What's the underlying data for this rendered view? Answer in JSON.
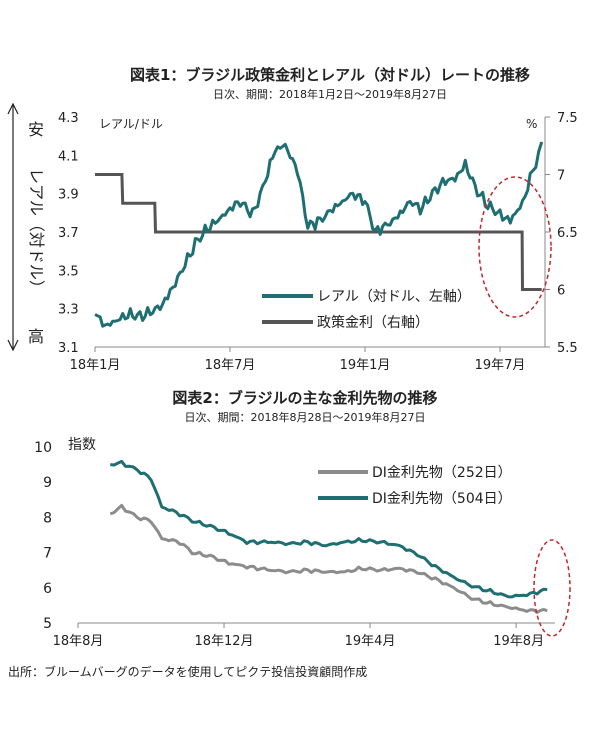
{
  "chart_data": [
    {
      "type": "line",
      "title": "図表1：ブラジル政策金利とレアル（対ドル）レートの推移",
      "subtitle": "日次、期間：2018年1月2日～2019年8月27日",
      "y_left_label_top": "安",
      "y_left_label_mid": "レアル（対ドル）",
      "y_left_label_bottom": "高",
      "y_left_unit": "レアル/ドル",
      "y_right_unit": "%",
      "x_tick_labels": [
        "18年1月",
        "18年7月",
        "19年1月",
        "19年7月"
      ],
      "x_ticks": [
        "2018-01",
        "2018-07",
        "2019-01",
        "2019-07"
      ],
      "y_left_ticks": [
        "4.3",
        "4.1",
        "3.9",
        "3.7",
        "3.5",
        "3.3",
        "3.1"
      ],
      "y_right_ticks": [
        "7.5",
        "7",
        "6.5",
        "6",
        "5.5"
      ],
      "y_left_inverted": true,
      "y_left_range": [
        3.1,
        4.3
      ],
      "y_right_range": [
        5.5,
        7.5
      ],
      "x_range": [
        "2018-01",
        "2019-09"
      ],
      "legend_position": "bottom-right",
      "colors": {
        "brl": "#1f6f72",
        "policy_rate": "#555555",
        "highlight": "#c0272d"
      },
      "series": [
        {
          "name": "レアル（対ドル、左軸）",
          "axis": "left",
          "points": [
            [
              "2018-01",
              3.27
            ],
            [
              "2018-01-15",
              3.21
            ],
            [
              "2018-02",
              3.24
            ],
            [
              "2018-02-15",
              3.27
            ],
            [
              "2018-03",
              3.26
            ],
            [
              "2018-03-15",
              3.28
            ],
            [
              "2018-04",
              3.32
            ],
            [
              "2018-04-15",
              3.41
            ],
            [
              "2018-05",
              3.53
            ],
            [
              "2018-05-15",
              3.64
            ],
            [
              "2018-06",
              3.72
            ],
            [
              "2018-06-15",
              3.76
            ],
            [
              "2018-07",
              3.82
            ],
            [
              "2018-07-15",
              3.86
            ],
            [
              "2018-08",
              3.79
            ],
            [
              "2018-08-15",
              3.93
            ],
            [
              "2018-09",
              4.13
            ],
            [
              "2018-09-15",
              4.15
            ],
            [
              "2018-10",
              4.02
            ],
            [
              "2018-10-15",
              3.73
            ],
            [
              "2018-11",
              3.76
            ],
            [
              "2018-11-15",
              3.81
            ],
            [
              "2018-12",
              3.86
            ],
            [
              "2018-12-15",
              3.9
            ],
            [
              "2019-01",
              3.86
            ],
            [
              "2019-01-15",
              3.7
            ],
            [
              "2019-02",
              3.74
            ],
            [
              "2019-02-15",
              3.78
            ],
            [
              "2019-03",
              3.86
            ],
            [
              "2019-03-15",
              3.82
            ],
            [
              "2019-04",
              3.9
            ],
            [
              "2019-04-15",
              3.96
            ],
            [
              "2019-05",
              3.98
            ],
            [
              "2019-05-15",
              4.05
            ],
            [
              "2019-06",
              3.91
            ],
            [
              "2019-06-15",
              3.84
            ],
            [
              "2019-07",
              3.79
            ],
            [
              "2019-07-15",
              3.76
            ],
            [
              "2019-08",
              3.85
            ],
            [
              "2019-08-15",
              4.02
            ],
            [
              "2019-08-27",
              4.17
            ]
          ]
        },
        {
          "name": "政策金利（右軸）",
          "axis": "right",
          "points": [
            [
              "2018-01",
              7.0
            ],
            [
              "2018-02-07",
              7.0
            ],
            [
              "2018-02-08",
              6.75
            ],
            [
              "2018-03-21",
              6.75
            ],
            [
              "2018-03-22",
              6.5
            ],
            [
              "2019-07-31",
              6.5
            ],
            [
              "2019-08-01",
              6.0
            ],
            [
              "2019-08-27",
              6.0
            ]
          ]
        }
      ]
    },
    {
      "type": "line",
      "title": "図表2：ブラジルの主な金利先物の推移",
      "subtitle": "日次、期間：2018年8月28日～2019年8月27日",
      "y_label": "指数",
      "x_tick_labels": [
        "18年8月",
        "18年12月",
        "19年4月",
        "19年8月"
      ],
      "x_ticks": [
        "2018-08",
        "2018-12",
        "2019-04",
        "2019-08"
      ],
      "y_ticks": [
        "10",
        "9",
        "8",
        "7",
        "6",
        "5"
      ],
      "y_range": [
        5,
        10
      ],
      "x_range": [
        "2018-08",
        "2019-08-31"
      ],
      "legend_position": "top-right",
      "colors": {
        "di252": "#8c8c8c",
        "di504": "#1f6f72",
        "highlight": "#c0272d"
      },
      "series": [
        {
          "name": "DI金利先物（252日）",
          "points": [
            [
              "2018-08-28",
              8.1
            ],
            [
              "2018-09-07",
              8.3
            ],
            [
              "2018-09-20",
              8.0
            ],
            [
              "2018-10-01",
              7.9
            ],
            [
              "2018-10-10",
              7.4
            ],
            [
              "2018-10-25",
              7.3
            ],
            [
              "2018-11-05",
              7.0
            ],
            [
              "2018-11-20",
              6.9
            ],
            [
              "2018-12-05",
              6.7
            ],
            [
              "2018-12-20",
              6.6
            ],
            [
              "2019-01-10",
              6.5
            ],
            [
              "2019-01-25",
              6.45
            ],
            [
              "2019-02-10",
              6.5
            ],
            [
              "2019-02-25",
              6.45
            ],
            [
              "2019-03-10",
              6.45
            ],
            [
              "2019-03-25",
              6.55
            ],
            [
              "2019-04-10",
              6.5
            ],
            [
              "2019-04-25",
              6.55
            ],
            [
              "2019-05-10",
              6.45
            ],
            [
              "2019-05-25",
              6.25
            ],
            [
              "2019-06-10",
              6.0
            ],
            [
              "2019-06-25",
              5.7
            ],
            [
              "2019-07-10",
              5.55
            ],
            [
              "2019-07-25",
              5.45
            ],
            [
              "2019-08-10",
              5.35
            ],
            [
              "2019-08-27",
              5.35
            ]
          ]
        },
        {
          "name": "DI金利先物（504日）",
          "points": [
            [
              "2018-08-28",
              9.5
            ],
            [
              "2018-09-07",
              9.55
            ],
            [
              "2018-09-20",
              9.35
            ],
            [
              "2018-10-01",
              9.1
            ],
            [
              "2018-10-10",
              8.3
            ],
            [
              "2018-10-25",
              8.1
            ],
            [
              "2018-11-05",
              7.9
            ],
            [
              "2018-11-20",
              7.75
            ],
            [
              "2018-12-05",
              7.55
            ],
            [
              "2018-12-20",
              7.3
            ],
            [
              "2019-01-10",
              7.3
            ],
            [
              "2019-01-25",
              7.25
            ],
            [
              "2019-02-10",
              7.3
            ],
            [
              "2019-02-25",
              7.2
            ],
            [
              "2019-03-10",
              7.3
            ],
            [
              "2019-03-25",
              7.35
            ],
            [
              "2019-04-10",
              7.3
            ],
            [
              "2019-04-25",
              7.2
            ],
            [
              "2019-05-10",
              6.95
            ],
            [
              "2019-05-25",
              6.6
            ],
            [
              "2019-06-10",
              6.3
            ],
            [
              "2019-06-25",
              6.05
            ],
            [
              "2019-07-10",
              5.9
            ],
            [
              "2019-07-25",
              5.75
            ],
            [
              "2019-08-10",
              5.8
            ],
            [
              "2019-08-27",
              5.95
            ]
          ]
        }
      ]
    }
  ],
  "source_note": "出所：ブルームバーグのデータを使用してピクテ投信投資顧問作成"
}
